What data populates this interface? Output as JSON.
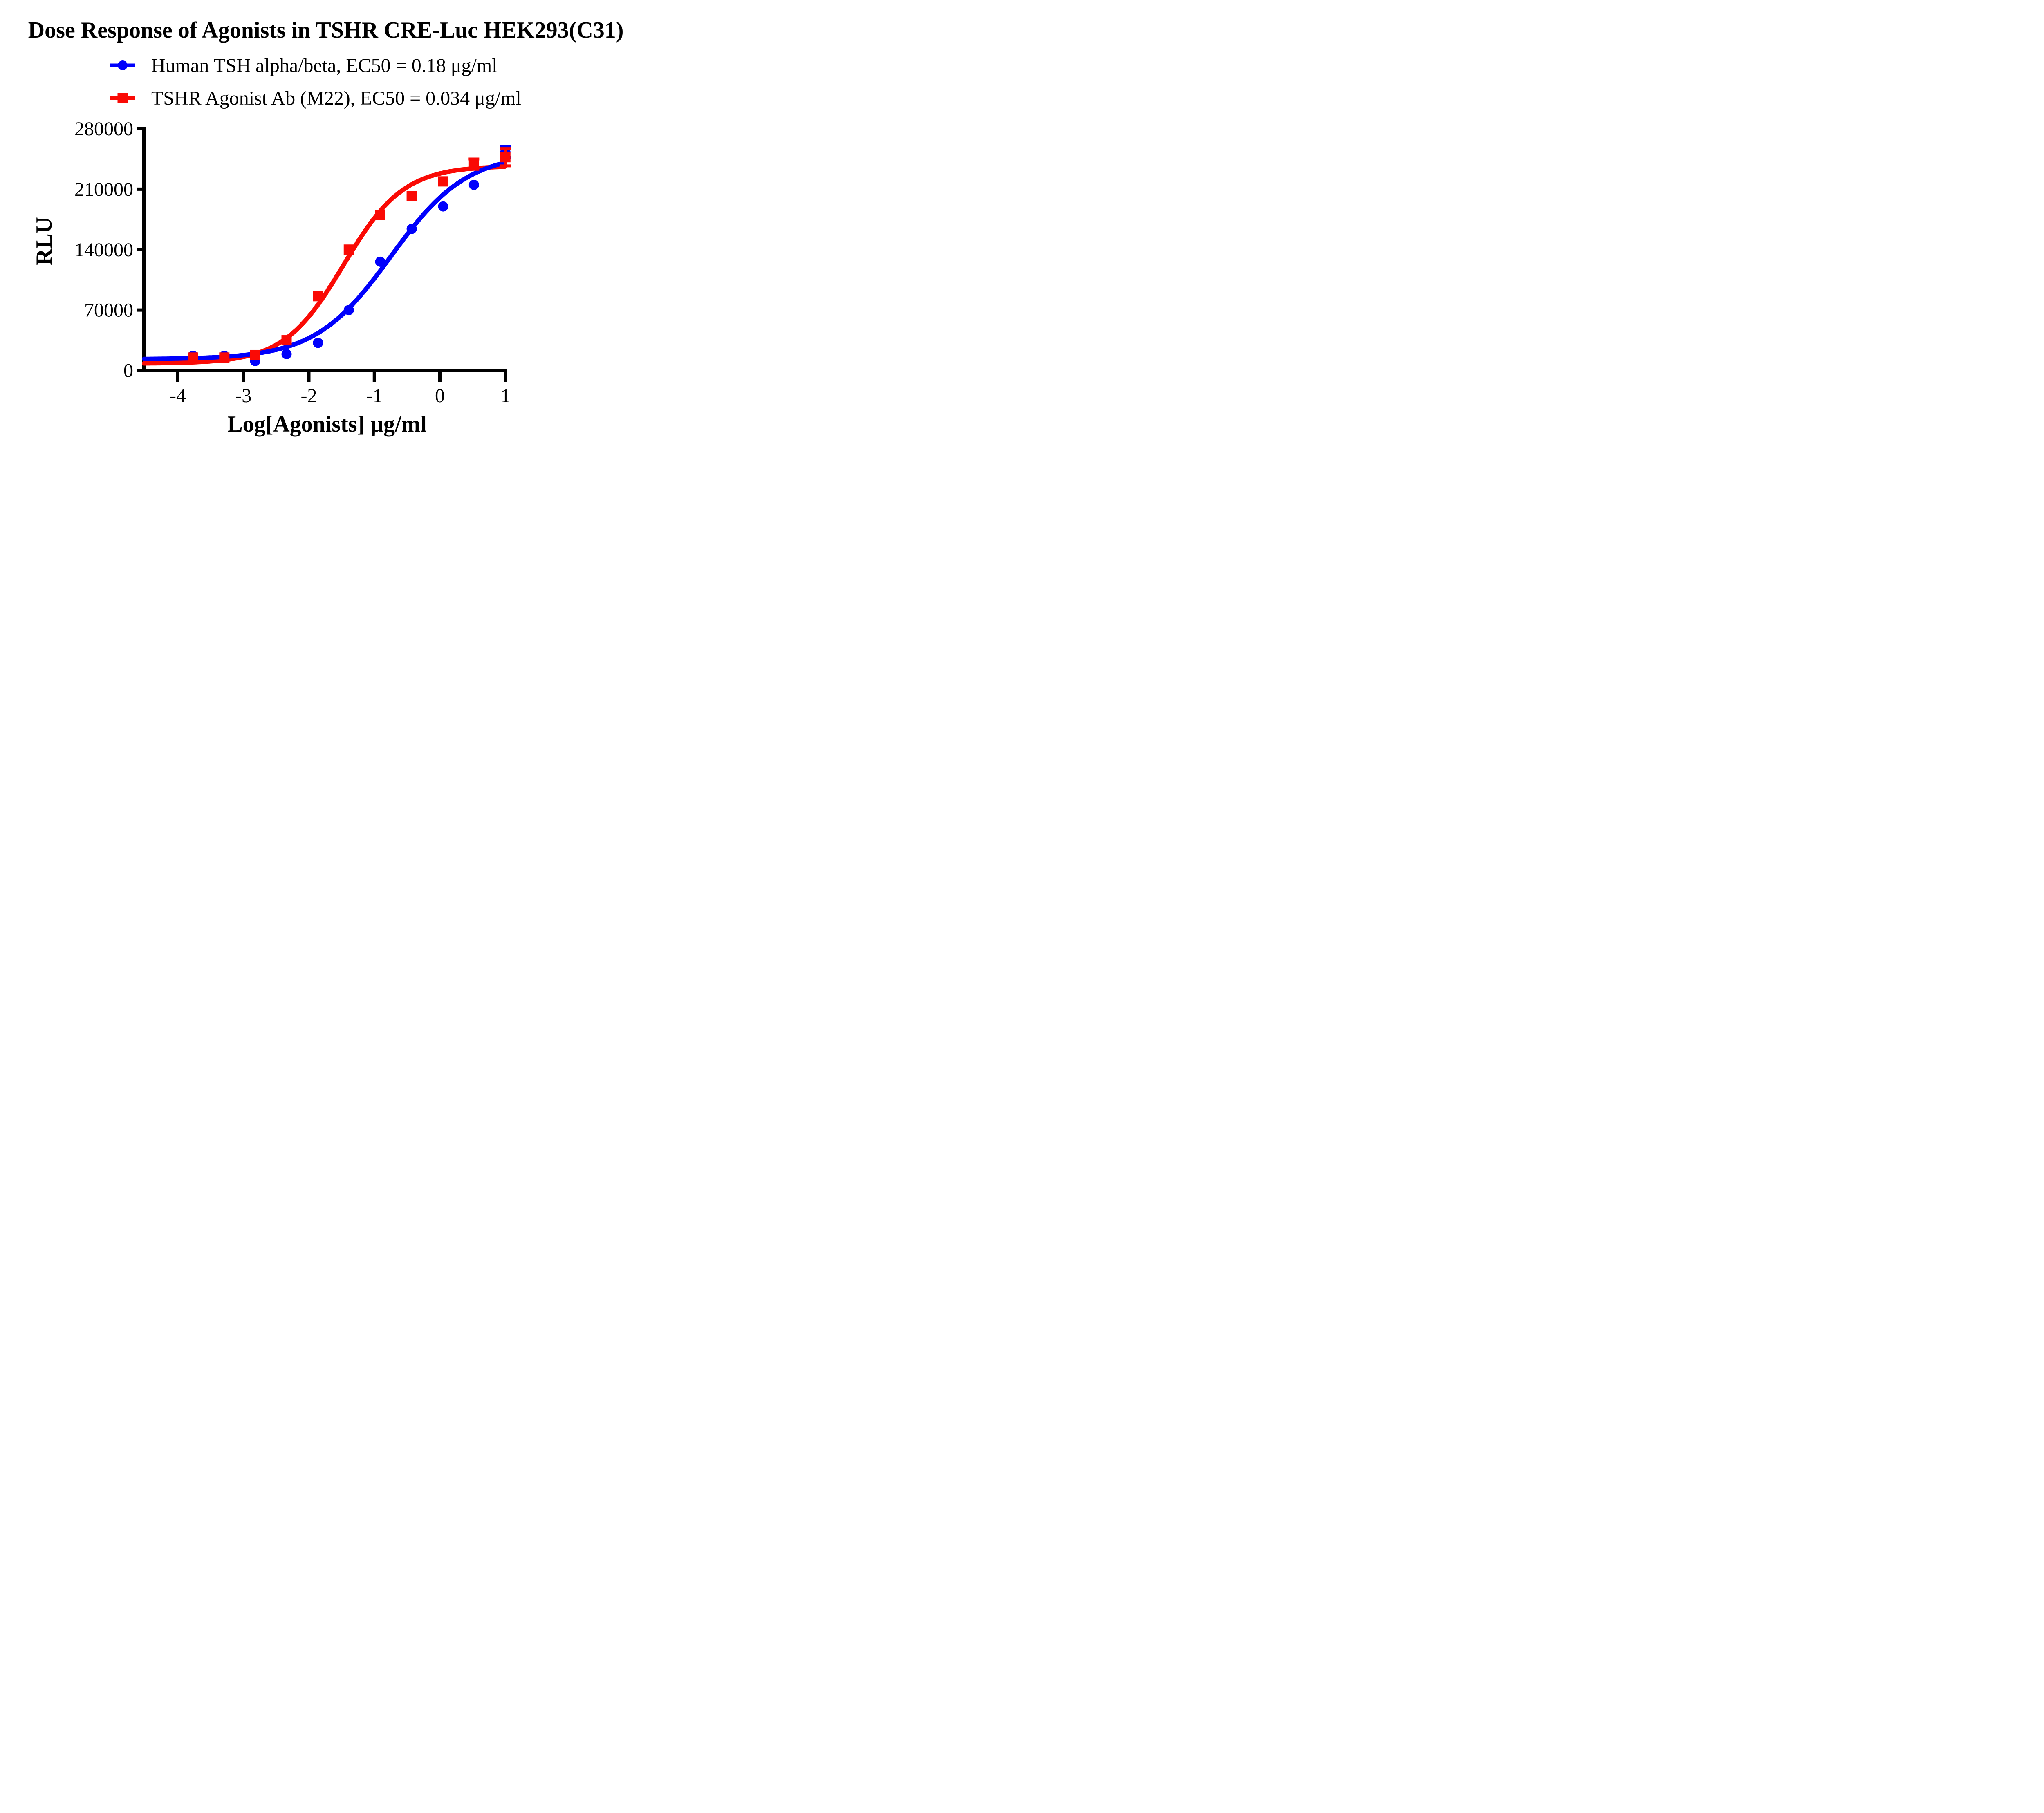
{
  "title": "Dose Response of Agonists in TSHR CRE-Luc HEK293(C31)",
  "colors": {
    "blue": "#0000FC",
    "red": "#FA0A05",
    "axis": "#000000",
    "background": "#FFFFFF"
  },
  "legend": [
    {
      "label": "Human TSH alpha/beta, EC50 = 0.18 μg/ml",
      "series": "Human TSH alpha/beta",
      "ec50": "0.18 μg/ml",
      "color_key": "blue",
      "marker": "circle"
    },
    {
      "label": "TSHR Agonist Ab (M22), EC50 = 0.034 μg/ml",
      "series": "TSHR Agonist Ab (M22)",
      "ec50": "0.034 μg/ml",
      "color_key": "red",
      "marker": "square"
    }
  ],
  "chart_data": {
    "type": "scatter",
    "title": "Dose Response of Agonists in TSHR CRE-Luc HEK293(C31)",
    "xlabel": "Log[Agonists] μg/ml",
    "ylabel": "RLU",
    "xlim": [
      -4.52,
      1.28
    ],
    "ylim": [
      0,
      280000
    ],
    "x_ticks": [
      -4,
      -3,
      -2,
      -1,
      0,
      1
    ],
    "y_ticks": [
      0,
      70000,
      140000,
      210000,
      280000
    ],
    "grid": false,
    "legend_position": "above-plot-left",
    "series": [
      {
        "name": "Human TSH alpha/beta",
        "ec50": "0.18 μg/ml",
        "color_key": "blue",
        "marker": "circle",
        "x": [
          -3.77,
          -3.29,
          -2.82,
          -2.34,
          -1.86,
          -1.39,
          -0.91,
          -0.43,
          0.05,
          0.52,
          1.0
        ],
        "y": [
          17000,
          17000,
          11000,
          19000,
          32000,
          70000,
          126000,
          164000,
          190000,
          215000,
          253000
        ],
        "y_err": [
          0,
          0,
          0,
          0,
          0,
          0,
          0,
          0,
          0,
          0,
          6000
        ],
        "fit_4pl": {
          "bottom": 13000,
          "top": 252000,
          "logEC50": -0.745,
          "hill": 0.75
        }
      },
      {
        "name": "TSHR Agonist Ab (M22)",
        "ec50": "0.034 μg/ml",
        "color_key": "red",
        "marker": "square",
        "x": [
          -3.77,
          -3.29,
          -2.82,
          -2.34,
          -1.86,
          -1.39,
          -0.91,
          -0.43,
          0.05,
          0.52,
          1.0
        ],
        "y": [
          15000,
          15000,
          18000,
          35000,
          86000,
          140000,
          180000,
          202000,
          219000,
          239000,
          247000
        ],
        "y_err": [
          0,
          0,
          0,
          0,
          0,
          0,
          0,
          0,
          0,
          6000,
          10000
        ],
        "fit_4pl": {
          "bottom": 8000,
          "top": 237000,
          "logEC50": -1.468,
          "hill": 0.95
        }
      }
    ]
  }
}
